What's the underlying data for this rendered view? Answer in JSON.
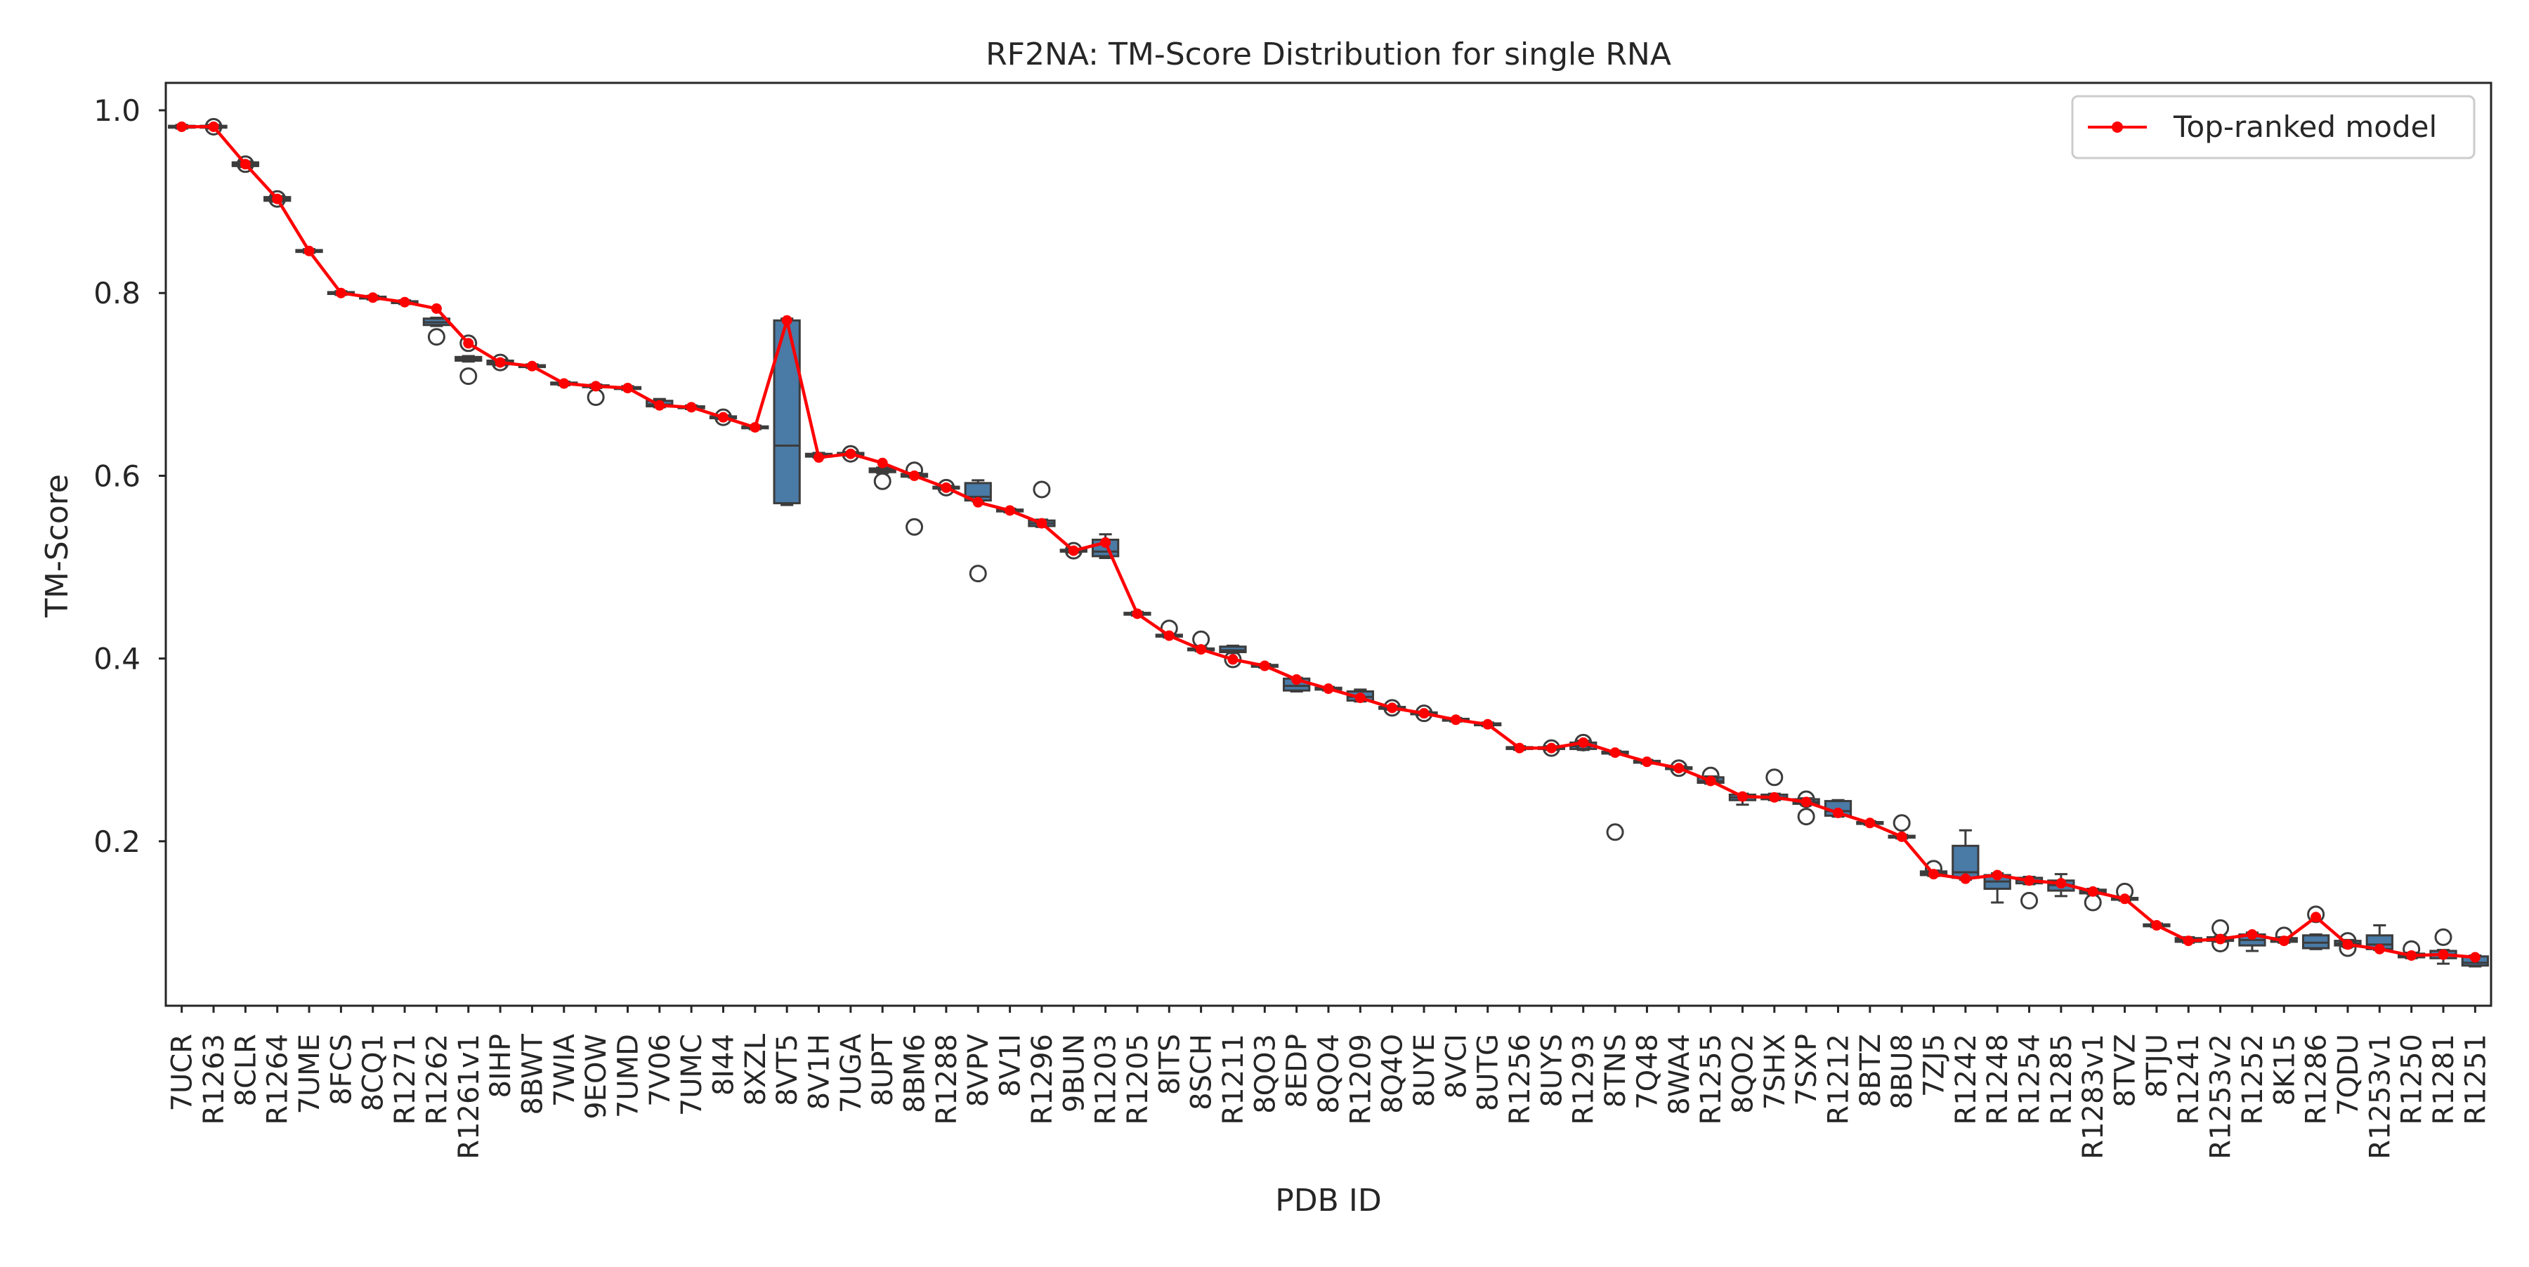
{
  "chart_data": {
    "type": "box",
    "title": "RF2NA: TM-Score Distribution for single RNA",
    "xlabel": "PDB ID",
    "ylabel": "TM-Score",
    "ylim": [
      0.02,
      1.03
    ],
    "yticks": [
      0.2,
      0.4,
      0.6,
      0.8,
      1.0
    ],
    "ytick_labels": [
      "0.2",
      "0.4",
      "0.6",
      "0.8",
      "1.0"
    ],
    "grid": false,
    "legend": {
      "placement": "top-right",
      "entries": [
        "Top-ranked model"
      ]
    },
    "colors": {
      "box": "#4a7aa6",
      "line": "#ff0000",
      "text": "#262626",
      "axes": "#262626"
    },
    "categories": [
      "7UCR",
      "R1263",
      "8CLR",
      "R1264",
      "7UME",
      "8FCS",
      "8CQ1",
      "R1271",
      "R1262",
      "R1261v1",
      "8IHP",
      "8BWT",
      "7WIA",
      "9EOW",
      "7UMD",
      "7V06",
      "7UMC",
      "8I44",
      "8XZL",
      "8VT5",
      "8V1H",
      "7UGA",
      "8UPT",
      "8BM6",
      "R1288",
      "8VPV",
      "8V1I",
      "R1296",
      "9BUN",
      "R1203",
      "R1205",
      "8ITS",
      "8SCH",
      "R1211",
      "8QO3",
      "8EDP",
      "8QO4",
      "R1209",
      "8Q4O",
      "8UYE",
      "8VCI",
      "8UTG",
      "R1256",
      "8UYS",
      "R1293",
      "8TNS",
      "7Q48",
      "8WA4",
      "R1255",
      "8QO2",
      "7SHX",
      "7SXP",
      "R1212",
      "8BTZ",
      "8BU8",
      "7ZJ5",
      "R1242",
      "R1248",
      "R1254",
      "R1285",
      "R1283v1",
      "8TVZ",
      "8TJU",
      "R1241",
      "R1253v2",
      "R1252",
      "8K15",
      "R1286",
      "7QDU",
      "R1253v1",
      "R1250",
      "R1281",
      "R1251"
    ],
    "series": [
      {
        "name": "Top-ranked model",
        "values": [
          0.982,
          0.982,
          0.941,
          0.903,
          0.846,
          0.8,
          0.795,
          0.79,
          0.783,
          0.745,
          0.724,
          0.72,
          0.701,
          0.698,
          0.696,
          0.677,
          0.675,
          0.664,
          0.653,
          0.77,
          0.62,
          0.624,
          0.614,
          0.6,
          0.587,
          0.571,
          0.562,
          0.548,
          0.518,
          0.527,
          0.449,
          0.425,
          0.41,
          0.399,
          0.392,
          0.377,
          0.367,
          0.357,
          0.346,
          0.34,
          0.333,
          0.328,
          0.302,
          0.302,
          0.308,
          0.297,
          0.287,
          0.28,
          0.266,
          0.249,
          0.248,
          0.243,
          0.231,
          0.22,
          0.205,
          0.164,
          0.159,
          0.163,
          0.157,
          0.154,
          0.145,
          0.137,
          0.108,
          0.091,
          0.093,
          0.098,
          0.091,
          0.117,
          0.087,
          0.082,
          0.075,
          0.076,
          0.073
        ]
      }
    ],
    "boxes": [
      {
        "q1": 0.981,
        "med": 0.982,
        "q3": 0.983,
        "wlo": 0.98,
        "whi": 0.984,
        "fliers": []
      },
      {
        "q1": 0.981,
        "med": 0.982,
        "q3": 0.983,
        "wlo": 0.98,
        "whi": 0.984,
        "fliers": [
          0.982
        ]
      },
      {
        "q1": 0.939,
        "med": 0.941,
        "q3": 0.943,
        "wlo": 0.938,
        "whi": 0.944,
        "fliers": [
          0.941
        ]
      },
      {
        "q1": 0.901,
        "med": 0.903,
        "q3": 0.905,
        "wlo": 0.9,
        "whi": 0.906,
        "fliers": [
          0.903
        ]
      },
      {
        "q1": 0.845,
        "med": 0.846,
        "q3": 0.847,
        "wlo": 0.844,
        "whi": 0.848,
        "fliers": []
      },
      {
        "q1": 0.799,
        "med": 0.8,
        "q3": 0.801,
        "wlo": 0.798,
        "whi": 0.802,
        "fliers": []
      },
      {
        "q1": 0.794,
        "med": 0.795,
        "q3": 0.796,
        "wlo": 0.793,
        "whi": 0.797,
        "fliers": []
      },
      {
        "q1": 0.789,
        "med": 0.79,
        "q3": 0.791,
        "wlo": 0.788,
        "whi": 0.792,
        "fliers": []
      },
      {
        "q1": 0.765,
        "med": 0.768,
        "q3": 0.772,
        "wlo": 0.764,
        "whi": 0.773,
        "fliers": [
          0.752
        ]
      },
      {
        "q1": 0.726,
        "med": 0.728,
        "q3": 0.73,
        "wlo": 0.725,
        "whi": 0.731,
        "fliers": [
          0.745,
          0.709
        ]
      },
      {
        "q1": 0.722,
        "med": 0.724,
        "q3": 0.726,
        "wlo": 0.721,
        "whi": 0.727,
        "fliers": [
          0.724
        ]
      },
      {
        "q1": 0.719,
        "med": 0.72,
        "q3": 0.721,
        "wlo": 0.718,
        "whi": 0.722,
        "fliers": []
      },
      {
        "q1": 0.7,
        "med": 0.701,
        "q3": 0.702,
        "wlo": 0.699,
        "whi": 0.703,
        "fliers": []
      },
      {
        "q1": 0.697,
        "med": 0.698,
        "q3": 0.699,
        "wlo": 0.696,
        "whi": 0.7,
        "fliers": [
          0.686
        ]
      },
      {
        "q1": 0.695,
        "med": 0.696,
        "q3": 0.697,
        "wlo": 0.694,
        "whi": 0.698,
        "fliers": []
      },
      {
        "q1": 0.676,
        "med": 0.678,
        "q3": 0.682,
        "wlo": 0.675,
        "whi": 0.684,
        "fliers": []
      },
      {
        "q1": 0.674,
        "med": 0.675,
        "q3": 0.676,
        "wlo": 0.673,
        "whi": 0.677,
        "fliers": []
      },
      {
        "q1": 0.663,
        "med": 0.664,
        "q3": 0.665,
        "wlo": 0.662,
        "whi": 0.666,
        "fliers": [
          0.664
        ]
      },
      {
        "q1": 0.652,
        "med": 0.653,
        "q3": 0.654,
        "wlo": 0.651,
        "whi": 0.655,
        "fliers": []
      },
      {
        "q1": 0.57,
        "med": 0.633,
        "q3": 0.77,
        "wlo": 0.568,
        "whi": 0.772,
        "fliers": []
      },
      {
        "q1": 0.621,
        "med": 0.622,
        "q3": 0.624,
        "wlo": 0.62,
        "whi": 0.625,
        "fliers": []
      },
      {
        "q1": 0.623,
        "med": 0.624,
        "q3": 0.625,
        "wlo": 0.622,
        "whi": 0.626,
        "fliers": [
          0.624
        ]
      },
      {
        "q1": 0.604,
        "med": 0.606,
        "q3": 0.608,
        "wlo": 0.603,
        "whi": 0.609,
        "fliers": [
          0.594
        ]
      },
      {
        "q1": 0.599,
        "med": 0.6,
        "q3": 0.602,
        "wlo": 0.598,
        "whi": 0.603,
        "fliers": [
          0.606,
          0.544
        ]
      },
      {
        "q1": 0.586,
        "med": 0.587,
        "q3": 0.588,
        "wlo": 0.585,
        "whi": 0.589,
        "fliers": [
          0.587
        ]
      },
      {
        "q1": 0.573,
        "med": 0.577,
        "q3": 0.592,
        "wlo": 0.572,
        "whi": 0.595,
        "fliers": [
          0.493
        ]
      },
      {
        "q1": 0.561,
        "med": 0.562,
        "q3": 0.563,
        "wlo": 0.56,
        "whi": 0.564,
        "fliers": []
      },
      {
        "q1": 0.545,
        "med": 0.548,
        "q3": 0.551,
        "wlo": 0.544,
        "whi": 0.552,
        "fliers": [
          0.585
        ]
      },
      {
        "q1": 0.517,
        "med": 0.518,
        "q3": 0.519,
        "wlo": 0.516,
        "whi": 0.52,
        "fliers": [
          0.518
        ]
      },
      {
        "q1": 0.512,
        "med": 0.517,
        "q3": 0.53,
        "wlo": 0.51,
        "whi": 0.536,
        "fliers": []
      },
      {
        "q1": 0.448,
        "med": 0.449,
        "q3": 0.45,
        "wlo": 0.447,
        "whi": 0.451,
        "fliers": []
      },
      {
        "q1": 0.424,
        "med": 0.425,
        "q3": 0.426,
        "wlo": 0.423,
        "whi": 0.427,
        "fliers": [
          0.433
        ]
      },
      {
        "q1": 0.409,
        "med": 0.41,
        "q3": 0.411,
        "wlo": 0.408,
        "whi": 0.412,
        "fliers": [
          0.421
        ]
      },
      {
        "q1": 0.407,
        "med": 0.409,
        "q3": 0.413,
        "wlo": 0.406,
        "whi": 0.414,
        "fliers": [
          0.399
        ]
      },
      {
        "q1": 0.391,
        "med": 0.392,
        "q3": 0.393,
        "wlo": 0.39,
        "whi": 0.394,
        "fliers": []
      },
      {
        "q1": 0.365,
        "med": 0.37,
        "q3": 0.378,
        "wlo": 0.364,
        "whi": 0.379,
        "fliers": []
      },
      {
        "q1": 0.366,
        "med": 0.367,
        "q3": 0.368,
        "wlo": 0.365,
        "whi": 0.369,
        "fliers": []
      },
      {
        "q1": 0.354,
        "med": 0.358,
        "q3": 0.364,
        "wlo": 0.353,
        "whi": 0.366,
        "fliers": []
      },
      {
        "q1": 0.345,
        "med": 0.346,
        "q3": 0.347,
        "wlo": 0.344,
        "whi": 0.348,
        "fliers": [
          0.346
        ]
      },
      {
        "q1": 0.339,
        "med": 0.34,
        "q3": 0.341,
        "wlo": 0.338,
        "whi": 0.342,
        "fliers": [
          0.34
        ]
      },
      {
        "q1": 0.332,
        "med": 0.333,
        "q3": 0.334,
        "wlo": 0.331,
        "whi": 0.335,
        "fliers": []
      },
      {
        "q1": 0.327,
        "med": 0.328,
        "q3": 0.329,
        "wlo": 0.326,
        "whi": 0.33,
        "fliers": []
      },
      {
        "q1": 0.301,
        "med": 0.302,
        "q3": 0.303,
        "wlo": 0.3,
        "whi": 0.304,
        "fliers": []
      },
      {
        "q1": 0.301,
        "med": 0.302,
        "q3": 0.303,
        "wlo": 0.3,
        "whi": 0.304,
        "fliers": [
          0.302
        ]
      },
      {
        "q1": 0.301,
        "med": 0.304,
        "q3": 0.308,
        "wlo": 0.3,
        "whi": 0.31,
        "fliers": [
          0.308
        ]
      },
      {
        "q1": 0.296,
        "med": 0.297,
        "q3": 0.298,
        "wlo": 0.295,
        "whi": 0.299,
        "fliers": [
          0.21
        ]
      },
      {
        "q1": 0.286,
        "med": 0.287,
        "q3": 0.288,
        "wlo": 0.285,
        "whi": 0.289,
        "fliers": []
      },
      {
        "q1": 0.279,
        "med": 0.28,
        "q3": 0.281,
        "wlo": 0.278,
        "whi": 0.282,
        "fliers": [
          0.28
        ]
      },
      {
        "q1": 0.264,
        "med": 0.266,
        "q3": 0.27,
        "wlo": 0.263,
        "whi": 0.271,
        "fliers": [
          0.272
        ]
      },
      {
        "q1": 0.245,
        "med": 0.248,
        "q3": 0.251,
        "wlo": 0.24,
        "whi": 0.252,
        "fliers": []
      },
      {
        "q1": 0.246,
        "med": 0.248,
        "q3": 0.251,
        "wlo": 0.245,
        "whi": 0.252,
        "fliers": [
          0.27
        ]
      },
      {
        "q1": 0.241,
        "med": 0.243,
        "q3": 0.246,
        "wlo": 0.24,
        "whi": 0.247,
        "fliers": [
          0.227,
          0.246
        ]
      },
      {
        "q1": 0.228,
        "med": 0.233,
        "q3": 0.244,
        "wlo": 0.227,
        "whi": 0.245,
        "fliers": []
      },
      {
        "q1": 0.219,
        "med": 0.22,
        "q3": 0.221,
        "wlo": 0.218,
        "whi": 0.222,
        "fliers": []
      },
      {
        "q1": 0.204,
        "med": 0.205,
        "q3": 0.206,
        "wlo": 0.203,
        "whi": 0.207,
        "fliers": [
          0.22
        ]
      },
      {
        "q1": 0.163,
        "med": 0.165,
        "q3": 0.167,
        "wlo": 0.162,
        "whi": 0.168,
        "fliers": [
          0.17
        ]
      },
      {
        "q1": 0.16,
        "med": 0.166,
        "q3": 0.195,
        "wlo": 0.158,
        "whi": 0.212,
        "fliers": []
      },
      {
        "q1": 0.148,
        "med": 0.156,
        "q3": 0.163,
        "wlo": 0.133,
        "whi": 0.165,
        "fliers": []
      },
      {
        "q1": 0.154,
        "med": 0.157,
        "q3": 0.16,
        "wlo": 0.153,
        "whi": 0.161,
        "fliers": [
          0.135
        ]
      },
      {
        "q1": 0.146,
        "med": 0.152,
        "q3": 0.157,
        "wlo": 0.14,
        "whi": 0.164,
        "fliers": []
      },
      {
        "q1": 0.143,
        "med": 0.145,
        "q3": 0.147,
        "wlo": 0.142,
        "whi": 0.148,
        "fliers": [
          0.133
        ]
      },
      {
        "q1": 0.136,
        "med": 0.137,
        "q3": 0.138,
        "wlo": 0.135,
        "whi": 0.139,
        "fliers": [
          0.145
        ]
      },
      {
        "q1": 0.107,
        "med": 0.108,
        "q3": 0.109,
        "wlo": 0.106,
        "whi": 0.11,
        "fliers": []
      },
      {
        "q1": 0.09,
        "med": 0.092,
        "q3": 0.094,
        "wlo": 0.089,
        "whi": 0.095,
        "fliers": []
      },
      {
        "q1": 0.091,
        "med": 0.093,
        "q3": 0.095,
        "wlo": 0.09,
        "whi": 0.096,
        "fliers": [
          0.105,
          0.088
        ]
      },
      {
        "q1": 0.086,
        "med": 0.092,
        "q3": 0.098,
        "wlo": 0.08,
        "whi": 0.1,
        "fliers": []
      },
      {
        "q1": 0.09,
        "med": 0.092,
        "q3": 0.094,
        "wlo": 0.089,
        "whi": 0.095,
        "fliers": [
          0.097
        ]
      },
      {
        "q1": 0.083,
        "med": 0.089,
        "q3": 0.097,
        "wlo": 0.082,
        "whi": 0.098,
        "fliers": [
          0.12
        ]
      },
      {
        "q1": 0.086,
        "med": 0.088,
        "q3": 0.091,
        "wlo": 0.085,
        "whi": 0.092,
        "fliers": [
          0.083,
          0.091
        ]
      },
      {
        "q1": 0.082,
        "med": 0.087,
        "q3": 0.097,
        "wlo": 0.081,
        "whi": 0.108,
        "fliers": []
      },
      {
        "q1": 0.073,
        "med": 0.075,
        "q3": 0.077,
        "wlo": 0.072,
        "whi": 0.078,
        "fliers": [
          0.082
        ]
      },
      {
        "q1": 0.072,
        "med": 0.076,
        "q3": 0.08,
        "wlo": 0.066,
        "whi": 0.081,
        "fliers": [
          0.095
        ]
      },
      {
        "q1": 0.064,
        "med": 0.067,
        "q3": 0.074,
        "wlo": 0.063,
        "whi": 0.075,
        "fliers": []
      }
    ]
  }
}
